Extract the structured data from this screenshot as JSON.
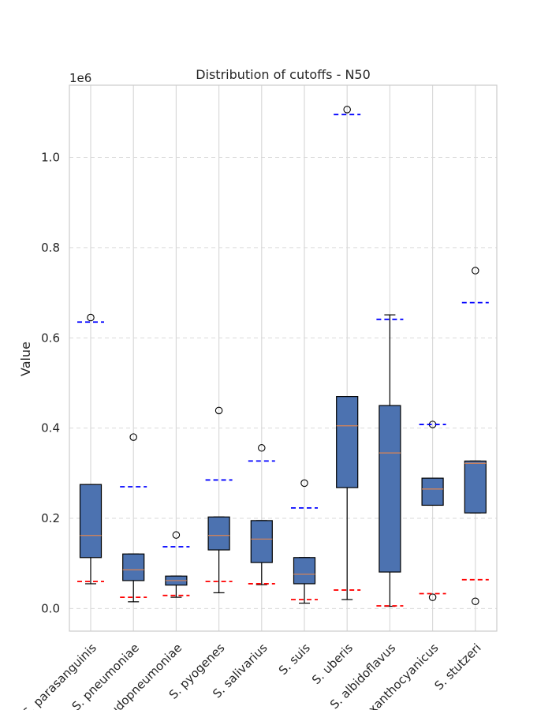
{
  "chart_data": {
    "type": "boxplot",
    "title": "Distribution of cutoffs - N50",
    "xlabel": "",
    "ylabel": "Value",
    "y_scale_label": "1e6",
    "ylim": [
      -50000,
      1160000
    ],
    "yticks": [
      0.0,
      0.2,
      0.4,
      0.6,
      0.8,
      1.0
    ],
    "ytick_labels": [
      "0.0",
      "0.2",
      "0.4",
      "0.6",
      "0.8",
      "1.0"
    ],
    "grid": true,
    "colors": {
      "box_fill": "#4c72b0",
      "median": "#dd8452",
      "upper_marker": "#0000ff",
      "lower_marker": "#ff0000",
      "grid": "#d9d9d9",
      "spine": "#cccccc"
    },
    "categories": [
      "S. parasanguinis",
      "S. pneumoniae",
      "S. pseudopneumoniae",
      "S. pyogenes",
      "S. salivarius",
      "S. suis",
      "S. uberis",
      "S. albidoflavus",
      "P. xanthocyanicus",
      "S. stutzeri"
    ],
    "boxes": [
      {
        "whisker_low": 55000,
        "q1": 113000,
        "median": 162000,
        "q3": 275000,
        "whisker_high": 275000,
        "outliers": [
          645000
        ],
        "upper_line": 635000,
        "lower_line": 60000
      },
      {
        "whisker_low": 15000,
        "q1": 62000,
        "median": 86000,
        "q3": 121000,
        "whisker_high": 121000,
        "outliers": [
          380000
        ],
        "upper_line": 270000,
        "lower_line": 25000
      },
      {
        "whisker_low": 25000,
        "q1": 52000,
        "median": 62000,
        "q3": 72000,
        "whisker_high": 72000,
        "outliers": [
          163000
        ],
        "upper_line": 137000,
        "lower_line": 29000
      },
      {
        "whisker_low": 35000,
        "q1": 130000,
        "median": 162000,
        "q3": 203000,
        "whisker_high": 203000,
        "outliers": [
          439000
        ],
        "upper_line": 285000,
        "lower_line": 60000
      },
      {
        "whisker_low": 53000,
        "q1": 102000,
        "median": 154000,
        "q3": 195000,
        "whisker_high": 195000,
        "outliers": [
          356000
        ],
        "upper_line": 327000,
        "lower_line": 55000
      },
      {
        "whisker_low": 12000,
        "q1": 55000,
        "median": 76000,
        "q3": 113000,
        "whisker_high": 113000,
        "outliers": [
          278000
        ],
        "upper_line": 223000,
        "lower_line": 20000
      },
      {
        "whisker_low": 20000,
        "q1": 268000,
        "median": 405000,
        "q3": 470000,
        "whisker_high": 470000,
        "outliers": [
          1106000
        ],
        "upper_line": 1095000,
        "lower_line": 41000
      },
      {
        "whisker_low": 5000,
        "q1": 81000,
        "median": 345000,
        "q3": 450000,
        "whisker_high": 651000,
        "outliers": [],
        "upper_line": 641000,
        "lower_line": 6000
      },
      {
        "whisker_low": 229000,
        "q1": 229000,
        "median": 265000,
        "q3": 289000,
        "whisker_high": 289000,
        "outliers": [
          408000,
          25000
        ],
        "upper_line": 408000,
        "lower_line": 33000
      },
      {
        "whisker_low": 212000,
        "q1": 212000,
        "median": 322000,
        "q3": 327000,
        "whisker_high": 327000,
        "outliers": [
          749000,
          16000
        ],
        "upper_line": 678000,
        "lower_line": 64000
      }
    ]
  }
}
